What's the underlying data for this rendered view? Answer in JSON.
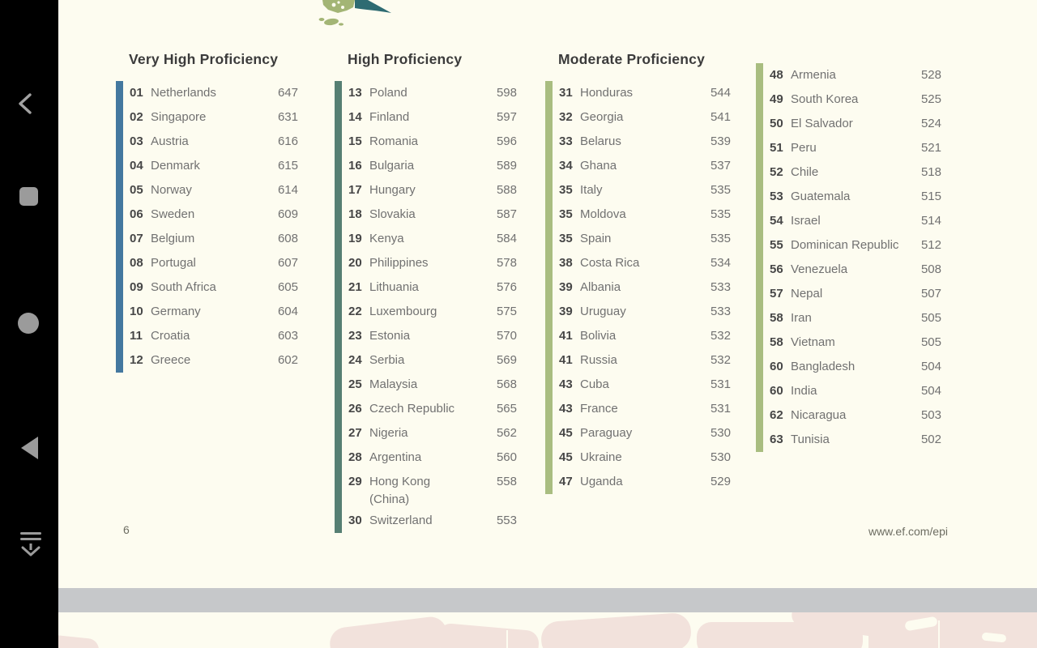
{
  "device": {
    "nav_icons": [
      {
        "name": "back-chevron-icon"
      },
      {
        "name": "recents-square-icon"
      },
      {
        "name": "home-circle-icon"
      },
      {
        "name": "back-triangle-icon"
      },
      {
        "name": "page-down-icon"
      }
    ]
  },
  "page": {
    "page_number": "6",
    "footer_url": "www.ef.com/epi",
    "bands": {
      "very_high": "#44789f",
      "high": "#567f73",
      "moderate": "#a9bd80"
    },
    "columns": [
      {
        "header": "Very High Proficiency",
        "level": "very_high",
        "rows": [
          {
            "rank": "01",
            "country": "Netherlands",
            "score": "647"
          },
          {
            "rank": "02",
            "country": "Singapore",
            "score": "631"
          },
          {
            "rank": "03",
            "country": "Austria",
            "score": "616"
          },
          {
            "rank": "04",
            "country": "Denmark",
            "score": "615"
          },
          {
            "rank": "05",
            "country": "Norway",
            "score": "614"
          },
          {
            "rank": "06",
            "country": "Sweden",
            "score": "609"
          },
          {
            "rank": "07",
            "country": "Belgium",
            "score": "608"
          },
          {
            "rank": "08",
            "country": "Portugal",
            "score": "607"
          },
          {
            "rank": "09",
            "country": "South Africa",
            "score": "605"
          },
          {
            "rank": "10",
            "country": "Germany",
            "score": "604"
          },
          {
            "rank": "11",
            "country": "Croatia",
            "score": "603"
          },
          {
            "rank": "12",
            "country": "Greece",
            "score": "602"
          }
        ]
      },
      {
        "header": "High Proficiency",
        "level": "high",
        "rows": [
          {
            "rank": "13",
            "country": "Poland",
            "score": "598"
          },
          {
            "rank": "14",
            "country": "Finland",
            "score": "597"
          },
          {
            "rank": "15",
            "country": "Romania",
            "score": "596"
          },
          {
            "rank": "16",
            "country": "Bulgaria",
            "score": "589"
          },
          {
            "rank": "17",
            "country": "Hungary",
            "score": "588"
          },
          {
            "rank": "18",
            "country": "Slovakia",
            "score": "587"
          },
          {
            "rank": "19",
            "country": "Kenya",
            "score": "584"
          },
          {
            "rank": "20",
            "country": "Philippines",
            "score": "578"
          },
          {
            "rank": "21",
            "country": "Lithuania",
            "score": "576"
          },
          {
            "rank": "22",
            "country": "Luxembourg",
            "score": "575"
          },
          {
            "rank": "23",
            "country": "Estonia",
            "score": "570"
          },
          {
            "rank": "24",
            "country": "Serbia",
            "score": "569"
          },
          {
            "rank": "25",
            "country": "Malaysia",
            "score": "568"
          },
          {
            "rank": "26",
            "country": "Czech Republic",
            "score": "565"
          },
          {
            "rank": "27",
            "country": "Nigeria",
            "score": "562"
          },
          {
            "rank": "28",
            "country": "Argentina",
            "score": "560"
          },
          {
            "rank": "29",
            "country": "Hong Kong\n(China)",
            "score": "558"
          },
          {
            "rank": "30",
            "country": "Switzerland",
            "score": "553"
          }
        ]
      },
      {
        "header": "Moderate Proficiency",
        "level": "moderate",
        "rows": [
          {
            "rank": "31",
            "country": "Honduras",
            "score": "544"
          },
          {
            "rank": "32",
            "country": "Georgia",
            "score": "541"
          },
          {
            "rank": "33",
            "country": "Belarus",
            "score": "539"
          },
          {
            "rank": "34",
            "country": "Ghana",
            "score": "537"
          },
          {
            "rank": "35",
            "country": "Italy",
            "score": "535"
          },
          {
            "rank": "35",
            "country": "Moldova",
            "score": "535"
          },
          {
            "rank": "35",
            "country": "Spain",
            "score": "535"
          },
          {
            "rank": "38",
            "country": "Costa Rica",
            "score": "534"
          },
          {
            "rank": "39",
            "country": "Albania",
            "score": "533"
          },
          {
            "rank": "39",
            "country": "Uruguay",
            "score": "533"
          },
          {
            "rank": "41",
            "country": "Bolivia",
            "score": "532"
          },
          {
            "rank": "41",
            "country": "Russia",
            "score": "532"
          },
          {
            "rank": "43",
            "country": "Cuba",
            "score": "531"
          },
          {
            "rank": "43",
            "country": "France",
            "score": "531"
          },
          {
            "rank": "45",
            "country": "Paraguay",
            "score": "530"
          },
          {
            "rank": "45",
            "country": "Ukraine",
            "score": "530"
          },
          {
            "rank": "47",
            "country": "Uganda",
            "score": "529"
          }
        ]
      },
      {
        "header": "",
        "level": "moderate",
        "rows": [
          {
            "rank": "48",
            "country": "Armenia",
            "score": "528"
          },
          {
            "rank": "49",
            "country": "South Korea",
            "score": "525"
          },
          {
            "rank": "50",
            "country": "El Salvador",
            "score": "524"
          },
          {
            "rank": "51",
            "country": "Peru",
            "score": "521"
          },
          {
            "rank": "52",
            "country": "Chile",
            "score": "518"
          },
          {
            "rank": "53",
            "country": "Guatemala",
            "score": "515"
          },
          {
            "rank": "54",
            "country": "Israel",
            "score": "514"
          },
          {
            "rank": "55",
            "country": "Dominican Republic",
            "score": "512"
          },
          {
            "rank": "56",
            "country": "Venezuela",
            "score": "508"
          },
          {
            "rank": "57",
            "country": "Nepal",
            "score": "507"
          },
          {
            "rank": "58",
            "country": "Iran",
            "score": "505"
          },
          {
            "rank": "58",
            "country": "Vietnam",
            "score": "505"
          },
          {
            "rank": "60",
            "country": "Bangladesh",
            "score": "504"
          },
          {
            "rank": "60",
            "country": "India",
            "score": "504"
          },
          {
            "rank": "62",
            "country": "Nicaragua",
            "score": "503"
          },
          {
            "rank": "63",
            "country": "Tunisia",
            "score": "502"
          }
        ]
      }
    ]
  }
}
